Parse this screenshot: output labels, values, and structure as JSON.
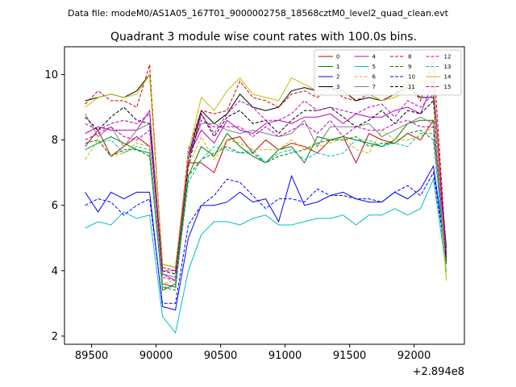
{
  "chart_data": {
    "type": "line",
    "suptitle": "Data file: modeM0/AS1A05_167T01_9000002758_18568cztM0_level2_quad_clean.evt",
    "title": "Quadrant 3 module wise count rates with 100.0s bins.",
    "xlabel": "",
    "ylabel": "",
    "offset_text": "+2.894e8",
    "xlim": [
      89290,
      92390
    ],
    "ylim": [
      1.75,
      10.85
    ],
    "x_ticks": [
      89500,
      90000,
      90500,
      91000,
      91500,
      92000
    ],
    "x_tick_labels": [
      "89500",
      "90000",
      "90500",
      "91000",
      "91500",
      "92000"
    ],
    "y_ticks": [
      2,
      4,
      6,
      8,
      10
    ],
    "y_tick_labels": [
      "2",
      "4",
      "6",
      "8",
      "10"
    ],
    "grid": false,
    "legend_position": "top-right",
    "x": [
      89450,
      89550,
      89650,
      89750,
      89850,
      89950,
      90050,
      90150,
      90250,
      90350,
      90450,
      90550,
      90650,
      90750,
      90850,
      90950,
      91050,
      91150,
      91250,
      91350,
      91450,
      91550,
      91650,
      91750,
      91850,
      91950,
      92050,
      92150,
      92250
    ],
    "series": [
      {
        "name": "0",
        "color": "#d00000",
        "dash": "solid",
        "values": [
          7.8,
          8.3,
          7.5,
          7.8,
          8.1,
          7.8,
          3.6,
          3.5,
          7.3,
          7.3,
          7.0,
          8.0,
          8.1,
          7.6,
          8.0,
          7.7,
          7.9,
          7.8,
          7.6,
          8.0,
          8.1,
          7.3,
          8.2,
          8.0,
          7.9,
          8.2,
          8.0,
          8.6,
          4.4
        ]
      },
      {
        "name": "1",
        "color": "#008000",
        "dash": "solid",
        "values": [
          7.7,
          7.9,
          8.1,
          7.9,
          7.7,
          7.6,
          3.4,
          3.6,
          6.9,
          7.8,
          7.5,
          8.2,
          7.8,
          7.5,
          7.3,
          7.7,
          7.8,
          7.3,
          8.1,
          8.0,
          8.1,
          8.0,
          7.9,
          7.8,
          8.0,
          8.5,
          8.6,
          8.6,
          4.2
        ]
      },
      {
        "name": "2",
        "color": "#0000ff",
        "dash": "solid",
        "values": [
          6.4,
          5.8,
          6.4,
          6.2,
          6.4,
          6.4,
          2.9,
          2.8,
          5.0,
          6.0,
          6.0,
          6.1,
          6.4,
          6.1,
          6.2,
          5.5,
          6.9,
          6.0,
          6.1,
          6.3,
          6.4,
          6.2,
          6.1,
          6.1,
          6.4,
          6.2,
          6.5,
          7.2,
          4.4
        ]
      },
      {
        "name": "3",
        "color": "#000000",
        "dash": "solid",
        "values": [
          9.2,
          9.3,
          9.4,
          9.3,
          9.5,
          10.0,
          4.2,
          4.1,
          7.5,
          8.9,
          8.5,
          8.8,
          9.4,
          9.0,
          8.9,
          9.0,
          9.5,
          9.6,
          9.5,
          9.6,
          9.5,
          9.2,
          9.3,
          9.2,
          9.4,
          9.6,
          9.3,
          9.3,
          4.7
        ]
      },
      {
        "name": "4",
        "color": "#c000c0",
        "dash": "solid",
        "values": [
          8.2,
          8.4,
          8.3,
          8.3,
          8.3,
          8.9,
          3.9,
          3.7,
          7.5,
          8.3,
          7.9,
          8.6,
          8.3,
          8.2,
          8.5,
          8.6,
          8.5,
          8.7,
          8.7,
          8.8,
          8.5,
          8.8,
          8.7,
          8.7,
          8.9,
          9.0,
          8.8,
          9.8,
          4.5
        ]
      },
      {
        "name": "5",
        "color": "#00bfbf",
        "dash": "solid",
        "values": [
          5.3,
          5.5,
          5.4,
          5.8,
          5.6,
          5.7,
          2.6,
          2.1,
          4.0,
          5.1,
          5.5,
          5.5,
          5.4,
          5.6,
          5.7,
          5.4,
          5.4,
          5.5,
          5.6,
          5.6,
          5.7,
          5.4,
          5.7,
          5.7,
          5.9,
          5.7,
          5.9,
          6.8,
          4.0
        ]
      },
      {
        "name": "6",
        "color": "#bfbf00",
        "dash": "dashed",
        "values": [
          7.4,
          8.0,
          7.5,
          7.6,
          7.9,
          7.8,
          3.6,
          3.7,
          7.2,
          8.1,
          7.4,
          8.0,
          7.9,
          7.7,
          7.7,
          7.7,
          8.0,
          7.7,
          7.8,
          7.9,
          8.1,
          7.7,
          7.6,
          8.3,
          8.0,
          8.0,
          8.1,
          8.4,
          3.7
        ]
      },
      {
        "name": "7",
        "color": "#808080",
        "dash": "solid",
        "values": [
          8.8,
          8.1,
          8.4,
          7.8,
          8.3,
          8.5,
          3.9,
          3.8,
          7.5,
          8.5,
          8.5,
          8.3,
          8.2,
          8.3,
          8.2,
          8.1,
          8.2,
          8.6,
          7.8,
          8.4,
          8.4,
          8.4,
          8.5,
          8.1,
          8.3,
          8.5,
          8.7,
          8.5,
          4.4
        ]
      },
      {
        "name": "8",
        "color": "#d00000",
        "dash": "dashed",
        "values": [
          9.1,
          9.5,
          9.2,
          9.2,
          9.0,
          10.3,
          4.1,
          4.0,
          7.7,
          8.9,
          8.8,
          8.9,
          9.8,
          9.3,
          9.2,
          9.0,
          9.4,
          9.5,
          9.3,
          9.6,
          9.3,
          9.2,
          9.4,
          9.2,
          9.4,
          9.8,
          9.2,
          10.5,
          4.5
        ]
      },
      {
        "name": "9",
        "color": "#008000",
        "dash": "dashed",
        "values": [
          7.9,
          8.0,
          7.5,
          7.7,
          7.7,
          7.5,
          3.5,
          3.4,
          6.9,
          7.4,
          7.6,
          7.8,
          7.6,
          7.6,
          7.3,
          7.5,
          7.6,
          7.7,
          7.9,
          8.0,
          8.0,
          8.1,
          7.8,
          7.9,
          7.9,
          8.2,
          8.3,
          8.0,
          4.2
        ]
      },
      {
        "name": "10",
        "color": "#0000ff",
        "dash": "dashed",
        "values": [
          6.0,
          6.2,
          6.1,
          5.7,
          6.0,
          6.2,
          3.0,
          3.0,
          5.4,
          6.0,
          6.3,
          6.8,
          6.7,
          6.3,
          5.9,
          6.2,
          6.2,
          6.1,
          6.5,
          6.3,
          6.3,
          6.2,
          6.2,
          6.1,
          6.4,
          6.6,
          6.3,
          7.0,
          4.3
        ]
      },
      {
        "name": "11",
        "color": "#000000",
        "dash": "dashed",
        "values": [
          8.7,
          8.3,
          8.7,
          9.0,
          8.6,
          8.5,
          4.0,
          3.9,
          7.2,
          8.8,
          8.1,
          8.7,
          8.9,
          8.5,
          8.6,
          8.2,
          8.6,
          8.9,
          8.9,
          9.0,
          8.7,
          8.4,
          8.6,
          8.9,
          8.5,
          8.9,
          8.8,
          9.2,
          4.4
        ]
      },
      {
        "name": "12",
        "color": "#c000c0",
        "dash": "dashed",
        "values": [
          8.5,
          8.3,
          8.5,
          8.6,
          8.5,
          8.8,
          4.0,
          4.0,
          7.4,
          8.8,
          8.2,
          8.8,
          9.2,
          9.0,
          8.6,
          8.6,
          8.8,
          9.2,
          8.9,
          9.0,
          8.9,
          8.8,
          9.0,
          9.1,
          8.7,
          9.2,
          9.0,
          9.4,
          4.4
        ]
      },
      {
        "name": "13",
        "color": "#00bfbf",
        "dash": "dashed",
        "values": [
          7.7,
          7.9,
          8.0,
          7.6,
          7.8,
          7.7,
          3.5,
          3.5,
          6.7,
          7.4,
          7.8,
          7.7,
          7.6,
          7.7,
          7.3,
          7.6,
          7.7,
          7.4,
          7.6,
          7.5,
          7.6,
          8.0,
          8.0,
          7.8,
          7.9,
          7.8,
          8.2,
          8.2,
          3.9
        ]
      },
      {
        "name": "14",
        "color": "#bfbf00",
        "dash": "solid",
        "values": [
          9.0,
          9.3,
          9.4,
          9.3,
          9.4,
          10.0,
          4.2,
          4.1,
          7.6,
          9.3,
          8.9,
          9.5,
          9.9,
          9.4,
          9.3,
          9.2,
          9.9,
          9.7,
          9.5,
          9.6,
          9.4,
          9.5,
          9.4,
          9.2,
          9.3,
          9.5,
          9.8,
          9.7,
          3.7
        ]
      },
      {
        "name": "15",
        "color": "#c000c0",
        "dash": "dashed",
        "values": [
          8.0,
          8.2,
          8.4,
          8.1,
          8.0,
          8.3,
          3.8,
          3.7,
          7.4,
          8.6,
          8.4,
          8.4,
          8.4,
          8.1,
          8.4,
          8.1,
          8.3,
          8.5,
          8.2,
          8.6,
          8.1,
          8.4,
          8.3,
          8.3,
          8.5,
          8.6,
          8.4,
          8.4,
          4.6
        ]
      }
    ]
  }
}
